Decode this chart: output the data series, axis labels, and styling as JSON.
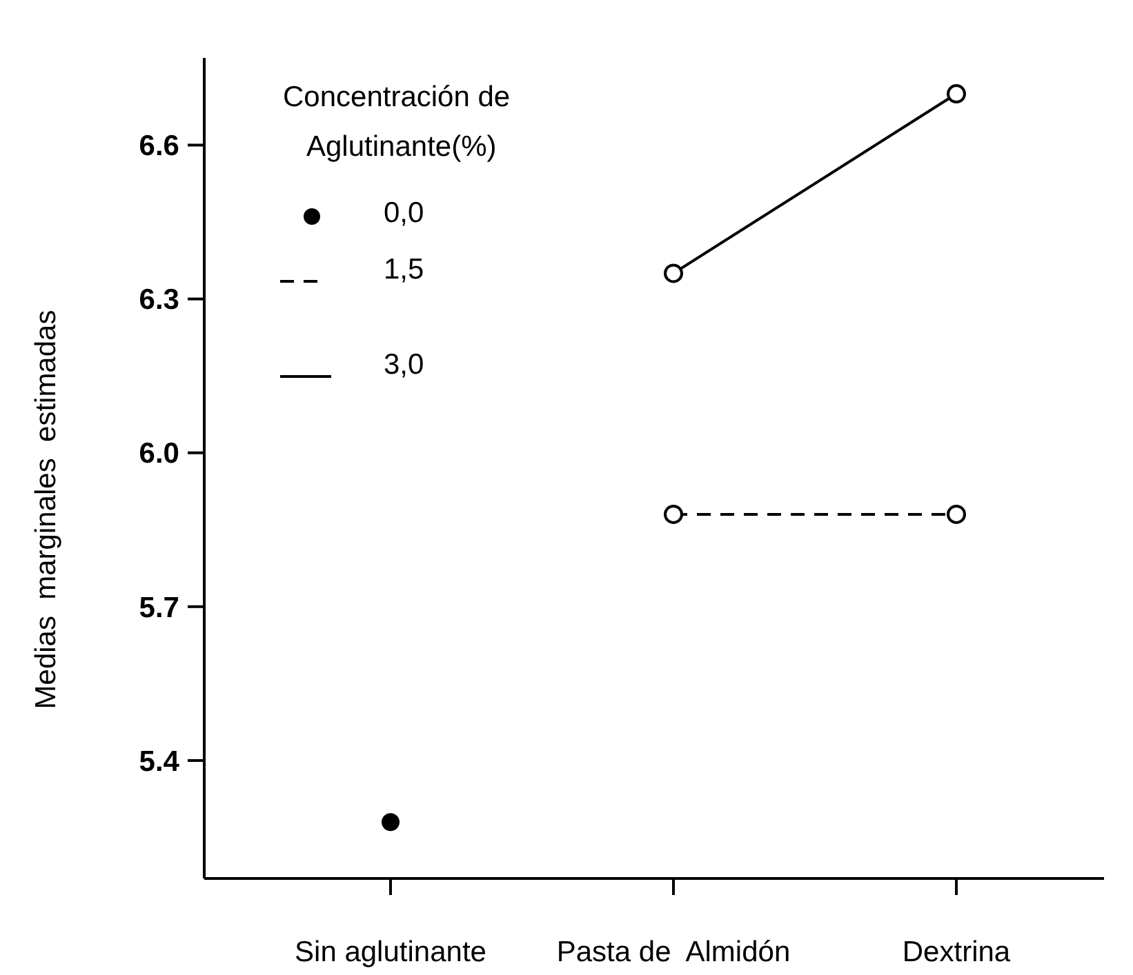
{
  "chart_data": {
    "type": "line",
    "ylabel": "Medias  marginales  estimadas",
    "legend_title": "Concentración de Aglutinante(%)",
    "categories": [
      "Sin aglutinante",
      "Pasta de  Almidón",
      "Dextrina"
    ],
    "ylim": [
      5.17,
      6.77
    ],
    "yticks": [
      5.4,
      5.7,
      {
        "value": 6.0,
        "label": "6.0"
      },
      6.3,
      6.6
    ],
    "legend": "top left",
    "grid": false,
    "series": [
      {
        "name": "0,0",
        "type": "scatter",
        "color": "#000000",
        "marker": "circle",
        "values": [
          5.28,
          null,
          null
        ]
      },
      {
        "name": "1,5",
        "color": "#000000",
        "marker": "circle",
        "line_style": "dashed",
        "values": [
          null,
          5.88,
          5.88
        ]
      },
      {
        "name": "3,0",
        "color": "#000000",
        "marker": "circle",
        "line_style": "solid",
        "values": [
          null,
          6.35,
          6.7
        ]
      }
    ]
  }
}
